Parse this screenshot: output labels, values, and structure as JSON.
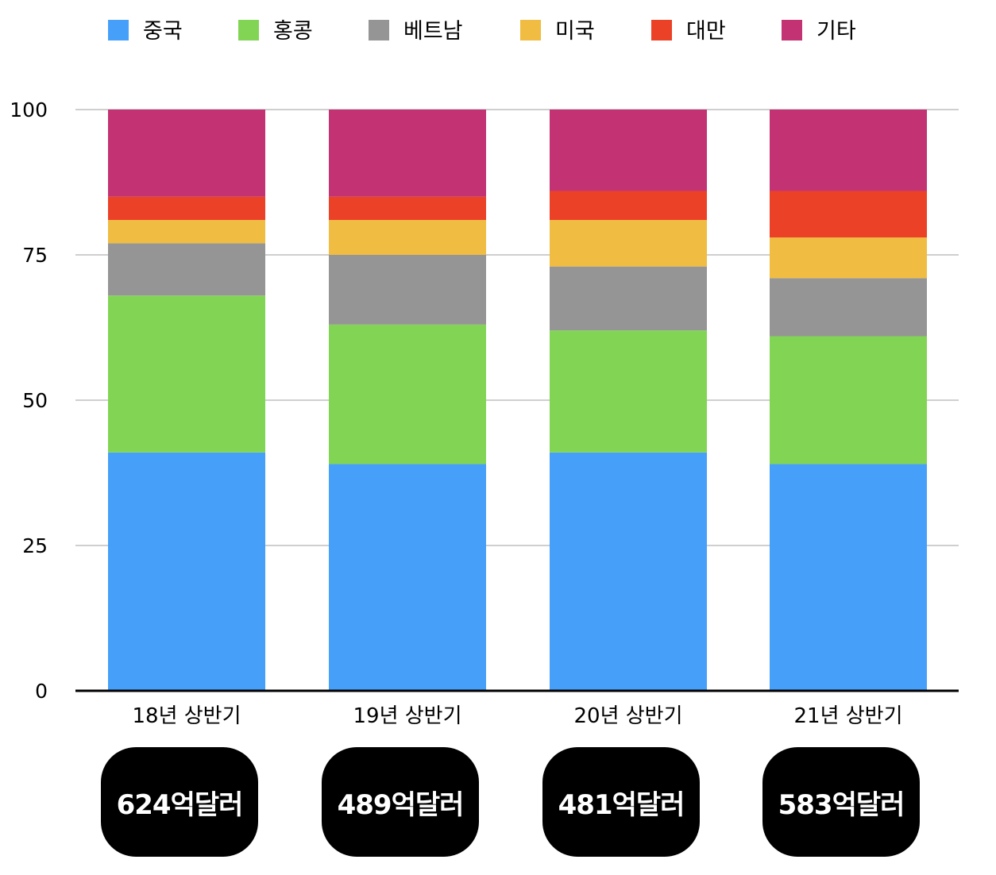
{
  "chart_data": {
    "type": "bar",
    "stacked": true,
    "categories": [
      "18년 상반기",
      "19년 상반기",
      "20년 상반기",
      "21년 상반기"
    ],
    "totals": [
      "624억달러",
      "489억달러",
      "481억달러",
      "583억달러"
    ],
    "ylim": [
      0,
      100
    ],
    "yticks": [
      "0",
      "25",
      "50",
      "75",
      "100"
    ],
    "grid": true,
    "legend_position": "top",
    "series": [
      {
        "name": "중국",
        "color": "#46A0F9",
        "values": [
          41,
          39,
          41,
          39
        ]
      },
      {
        "name": "홍콩",
        "color": "#82D554",
        "values": [
          27,
          24,
          21,
          22
        ]
      },
      {
        "name": "베트남",
        "color": "#959595",
        "values": [
          9,
          12,
          11,
          10
        ]
      },
      {
        "name": "미국",
        "color": "#F0BC42",
        "values": [
          4,
          6,
          8,
          7
        ]
      },
      {
        "name": "대만",
        "color": "#EB4127",
        "values": [
          4,
          4,
          5,
          8
        ]
      },
      {
        "name": "기타",
        "color": "#C33273",
        "values": [
          15,
          15,
          14,
          14
        ]
      }
    ]
  }
}
